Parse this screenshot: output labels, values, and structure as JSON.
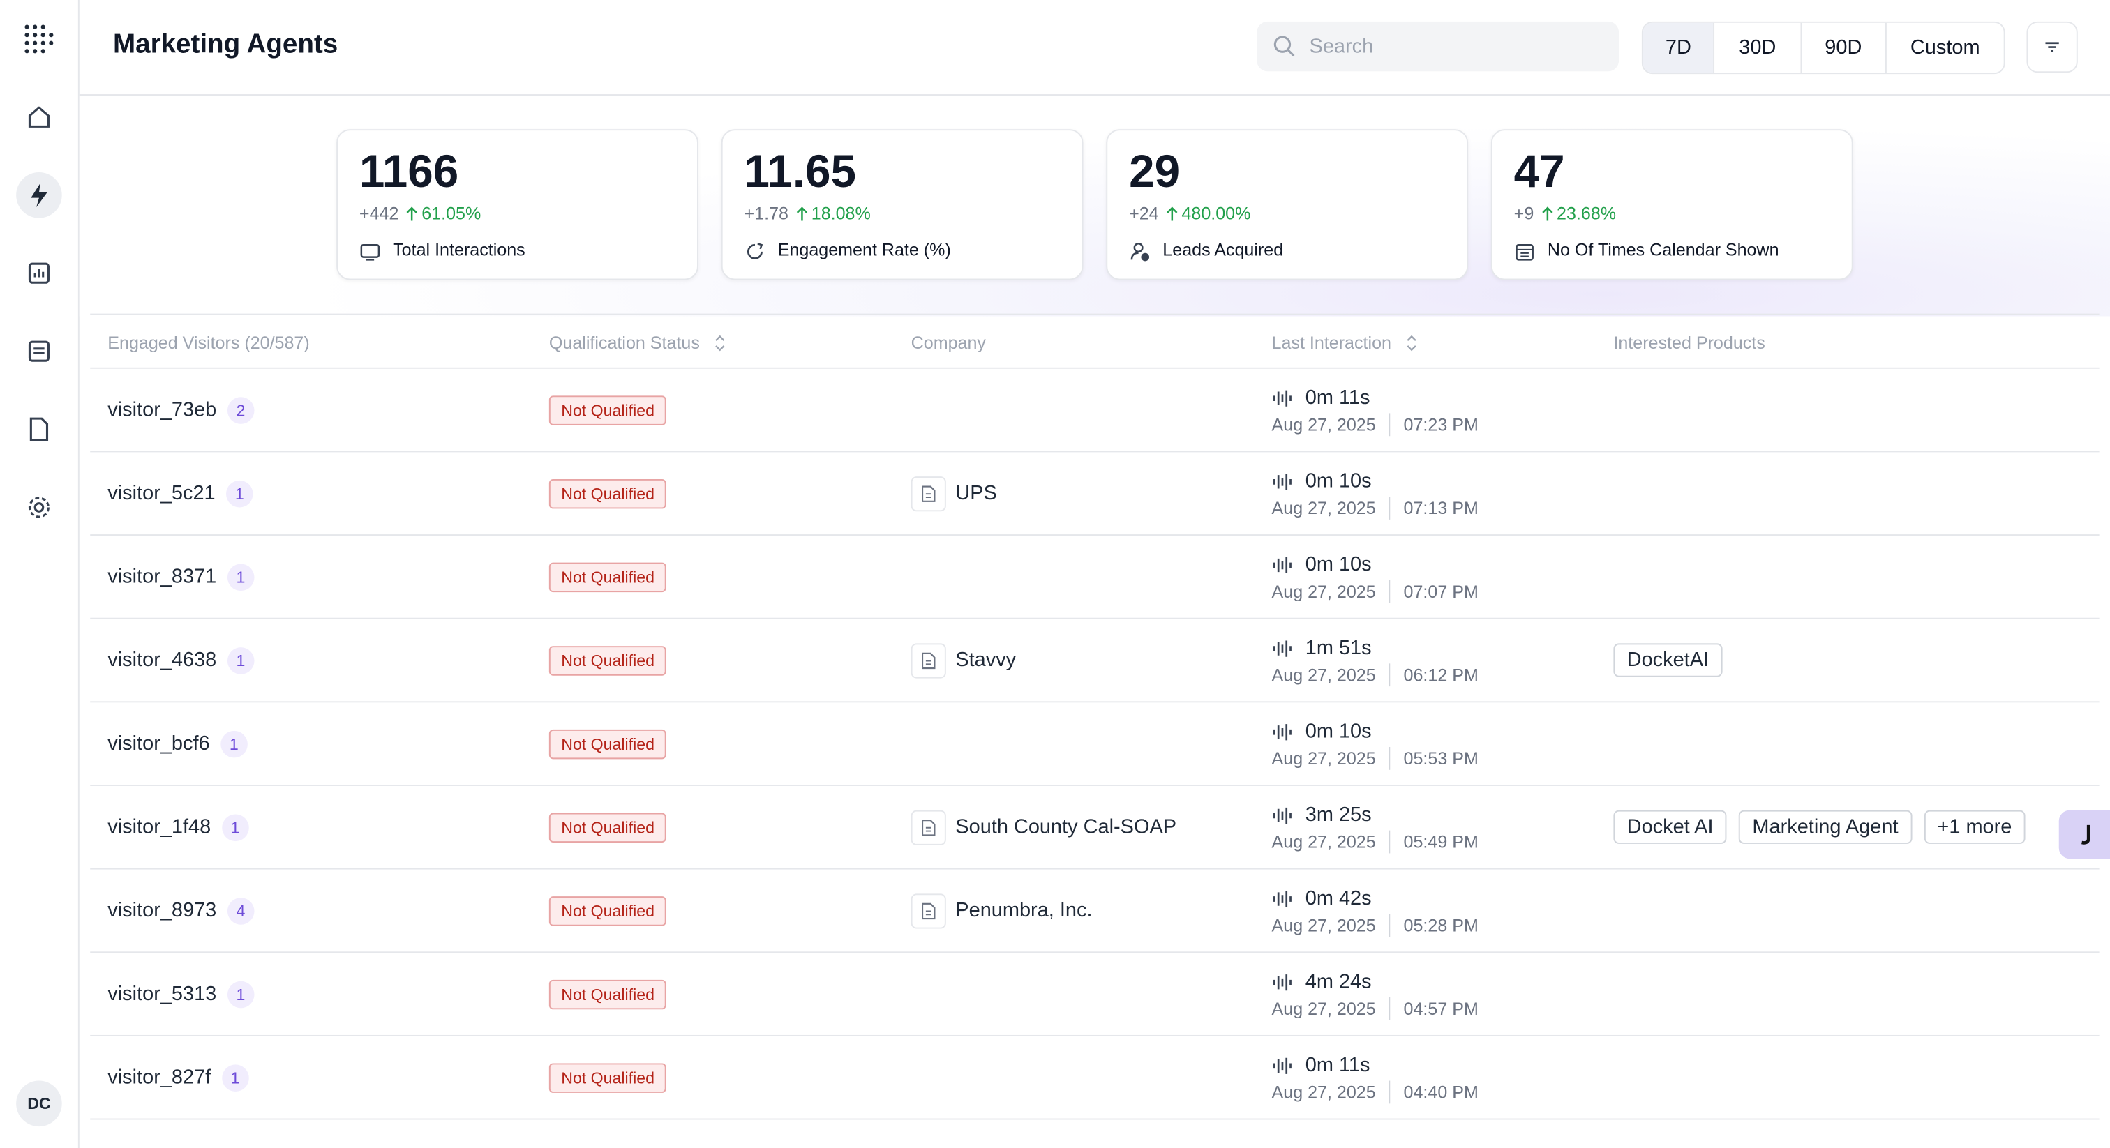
{
  "header": {
    "title": "Marketing Agents",
    "search_placeholder": "Search",
    "ranges": [
      "7D",
      "30D",
      "90D",
      "Custom"
    ]
  },
  "sidebar": {
    "avatar": "DC"
  },
  "stats": [
    {
      "value": "1166",
      "delta": "+442",
      "change": "61.05%",
      "label": "Total Interactions"
    },
    {
      "value": "11.65",
      "delta": "+1.78",
      "change": "18.08%",
      "label": "Engagement Rate (%)"
    },
    {
      "value": "29",
      "delta": "+24",
      "change": "480.00%",
      "label": "Leads Acquired"
    },
    {
      "value": "47",
      "delta": "+9",
      "change": "23.68%",
      "label": "No Of Times Calendar Shown"
    }
  ],
  "table": {
    "columns": [
      "Engaged Visitors (20/587)",
      "Qualification Status",
      "Company",
      "Last Interaction",
      "Interested Products"
    ],
    "rows": [
      {
        "visitor": "visitor_73eb",
        "count": "2",
        "status": "Not Qualified",
        "duration": "0m 11s",
        "date": "Aug 27, 2025",
        "time": "07:23 PM"
      },
      {
        "visitor": "visitor_5c21",
        "count": "1",
        "status": "Not Qualified",
        "company": "UPS",
        "duration": "0m 10s",
        "date": "Aug 27, 2025",
        "time": "07:13 PM"
      },
      {
        "visitor": "visitor_8371",
        "count": "1",
        "status": "Not Qualified",
        "duration": "0m 10s",
        "date": "Aug 27, 2025",
        "time": "07:07 PM"
      },
      {
        "visitor": "visitor_4638",
        "count": "1",
        "status": "Not Qualified",
        "company": "Stavvy",
        "duration": "1m 51s",
        "date": "Aug 27, 2025",
        "time": "06:12 PM",
        "products": [
          "DocketAI"
        ]
      },
      {
        "visitor": "visitor_bcf6",
        "count": "1",
        "status": "Not Qualified",
        "duration": "0m 10s",
        "date": "Aug 27, 2025",
        "time": "05:53 PM"
      },
      {
        "visitor": "visitor_1f48",
        "count": "1",
        "status": "Not Qualified",
        "company": "South County Cal-SOAP",
        "duration": "3m 25s",
        "date": "Aug 27, 2025",
        "time": "05:49 PM",
        "products": [
          "Docket AI",
          "Marketing Agent",
          "+1 more"
        ]
      },
      {
        "visitor": "visitor_8973",
        "count": "4",
        "status": "Not Qualified",
        "company": "Penumbra, Inc.",
        "duration": "0m 42s",
        "date": "Aug 27, 2025",
        "time": "05:28 PM"
      },
      {
        "visitor": "visitor_5313",
        "count": "1",
        "status": "Not Qualified",
        "duration": "4m 24s",
        "date": "Aug 27, 2025",
        "time": "04:57 PM"
      },
      {
        "visitor": "visitor_827f",
        "count": "1",
        "status": "Not Qualified",
        "duration": "0m 11s",
        "date": "Aug 27, 2025",
        "time": "04:40 PM"
      }
    ]
  }
}
